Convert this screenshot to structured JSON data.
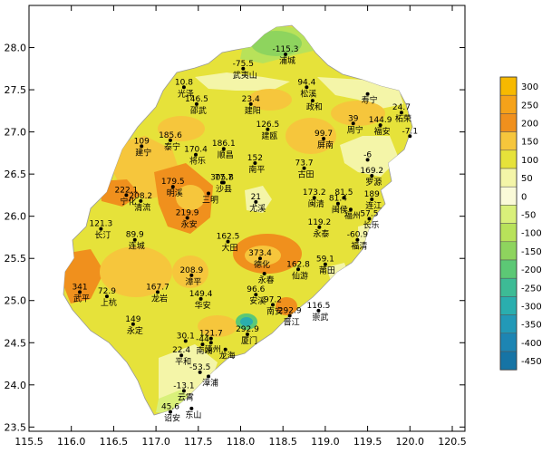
{
  "map": {
    "x_ticks": [
      "115.5",
      "116.0",
      "116.5",
      "117.0",
      "117.5",
      "118.0",
      "118.5",
      "119.0",
      "119.5",
      "120.0",
      "120.5"
    ],
    "y_ticks": [
      "28.0",
      "27.5",
      "27.0",
      "26.5",
      "26.0",
      "25.5",
      "25.0",
      "24.5",
      "24.0",
      "23.5"
    ],
    "legend": {
      "labels": [
        "300",
        "250",
        "200",
        "150",
        "100",
        "50",
        "0",
        "-50",
        "-100",
        "-150",
        "-200",
        "-250",
        "-300",
        "-350",
        "-400",
        "-450"
      ],
      "colors": [
        "#f7b900",
        "#f5a21a",
        "#f0901d",
        "#f6c63c",
        "#e6e23a",
        "#f4f5a8",
        "#fafad8",
        "#d9f07a",
        "#b8e25a",
        "#8ed45e",
        "#5cc875",
        "#3dbb95",
        "#2aaeae",
        "#2299b7",
        "#1d85b3",
        "#1674a5"
      ]
    },
    "stations": [
      {
        "value": "-115.3",
        "name": "浦城",
        "lon": 118.53,
        "lat": 27.92
      },
      {
        "value": "-75.5",
        "name": "武夷山",
        "lon": 118.03,
        "lat": 27.75
      },
      {
        "value": "10.8",
        "name": "光泽",
        "lon": 117.33,
        "lat": 27.53
      },
      {
        "value": "146.5",
        "name": "邵武",
        "lon": 117.48,
        "lat": 27.33
      },
      {
        "value": "23.4",
        "name": "建阳",
        "lon": 118.12,
        "lat": 27.33
      },
      {
        "value": "94.4",
        "name": "松溪",
        "lon": 118.78,
        "lat": 27.53
      },
      {
        "value": "",
        "name": "政和",
        "lon": 118.85,
        "lat": 27.37
      },
      {
        "value": "",
        "name": "寿宁",
        "lon": 119.5,
        "lat": 27.45
      },
      {
        "value": "24.7",
        "name": "柘荣",
        "lon": 119.9,
        "lat": 27.23
      },
      {
        "value": "39",
        "name": "周宁",
        "lon": 119.33,
        "lat": 27.1
      },
      {
        "value": "144.9",
        "name": "福安",
        "lon": 119.65,
        "lat": 27.08
      },
      {
        "value": "-7.1",
        "name": "",
        "lon": 120.0,
        "lat": 26.95
      },
      {
        "value": "126.5",
        "name": "建瓯",
        "lon": 118.32,
        "lat": 27.03
      },
      {
        "value": "185.6",
        "name": "泰宁",
        "lon": 117.17,
        "lat": 26.9
      },
      {
        "value": "109",
        "name": "建宁",
        "lon": 116.83,
        "lat": 26.83
      },
      {
        "value": "170.4",
        "name": "将乐",
        "lon": 117.47,
        "lat": 26.73
      },
      {
        "value": "186.1",
        "name": "顺昌",
        "lon": 117.8,
        "lat": 26.8
      },
      {
        "value": "99.7",
        "name": "屏南",
        "lon": 118.98,
        "lat": 26.92
      },
      {
        "value": "152",
        "name": "南平",
        "lon": 118.17,
        "lat": 26.63
      },
      {
        "value": "73.7",
        "name": "古田",
        "lon": 118.75,
        "lat": 26.57
      },
      {
        "value": "-6",
        "name": "",
        "lon": 119.5,
        "lat": 26.67
      },
      {
        "value": "169.2",
        "name": "罗源",
        "lon": 119.55,
        "lat": 26.48
      },
      {
        "value": "179.5",
        "name": "明溪",
        "lon": 117.2,
        "lat": 26.35
      },
      {
        "value": "77.7",
        "name": "",
        "lon": 117.8,
        "lat": 26.4
      },
      {
        "value": "305.8",
        "name": "沙县",
        "lon": 117.78,
        "lat": 26.4
      },
      {
        "value": "",
        "name": "三明",
        "lon": 117.62,
        "lat": 26.27
      },
      {
        "value": "21",
        "name": "尤溪",
        "lon": 118.18,
        "lat": 26.17
      },
      {
        "value": "173.2",
        "name": "闽清",
        "lon": 118.87,
        "lat": 26.22
      },
      {
        "value": "81.5",
        "name": "",
        "lon": 119.22,
        "lat": 26.22
      },
      {
        "value": "81.4",
        "name": "闽侯",
        "lon": 119.15,
        "lat": 26.15
      },
      {
        "value": "",
        "name": "福州",
        "lon": 119.3,
        "lat": 26.08
      },
      {
        "value": "57.5",
        "name": "长乐",
        "lon": 119.52,
        "lat": 25.97
      },
      {
        "value": "189",
        "name": "连江",
        "lon": 119.55,
        "lat": 26.2
      },
      {
        "value": "222.1",
        "name": "宁化",
        "lon": 116.65,
        "lat": 26.25
      },
      {
        "value": "208.2",
        "name": "清流",
        "lon": 116.82,
        "lat": 26.18
      },
      {
        "value": "219.9",
        "name": "永安",
        "lon": 117.37,
        "lat": 25.98
      },
      {
        "value": "121.3",
        "name": "长汀",
        "lon": 116.35,
        "lat": 25.85
      },
      {
        "value": "89.9",
        "name": "连城",
        "lon": 116.75,
        "lat": 25.72
      },
      {
        "value": "162.5",
        "name": "大田",
        "lon": 117.85,
        "lat": 25.7
      },
      {
        "value": "119.2",
        "name": "永泰",
        "lon": 118.93,
        "lat": 25.87
      },
      {
        "value": "-60.9",
        "name": "福清",
        "lon": 119.38,
        "lat": 25.72
      },
      {
        "value": "373.4",
        "name": "德化",
        "lon": 118.23,
        "lat": 25.5
      },
      {
        "value": "",
        "name": "永春",
        "lon": 118.28,
        "lat": 25.32
      },
      {
        "value": "162.8",
        "name": "仙游",
        "lon": 118.68,
        "lat": 25.37
      },
      {
        "value": "59.1",
        "name": "莆田",
        "lon": 119.0,
        "lat": 25.43
      },
      {
        "value": "208.9",
        "name": "漳平",
        "lon": 117.42,
        "lat": 25.3
      },
      {
        "value": "341",
        "name": "武平",
        "lon": 116.1,
        "lat": 25.1
      },
      {
        "value": "72.9",
        "name": "上杭",
        "lon": 116.42,
        "lat": 25.05
      },
      {
        "value": "167.7",
        "name": "龙岩",
        "lon": 117.02,
        "lat": 25.1
      },
      {
        "value": "149.4",
        "name": "华安",
        "lon": 117.53,
        "lat": 25.02
      },
      {
        "value": "96.6",
        "name": "安溪",
        "lon": 118.18,
        "lat": 25.07
      },
      {
        "value": "97.2",
        "name": "南安",
        "lon": 118.38,
        "lat": 24.95
      },
      {
        "value": "116.5",
        "name": "崇武",
        "lon": 118.92,
        "lat": 24.88
      },
      {
        "value": "292.9",
        "name": "晋江",
        "lon": 118.58,
        "lat": 24.82
      },
      {
        "value": "149",
        "name": "永定",
        "lon": 116.73,
        "lat": 24.72
      },
      {
        "value": "292.9",
        "name": "厦门",
        "lon": 118.08,
        "lat": 24.6
      },
      {
        "value": "121.7",
        "name": "",
        "lon": 117.65,
        "lat": 24.55
      },
      {
        "value": "30.1",
        "name": "",
        "lon": 117.35,
        "lat": 24.52
      },
      {
        "value": "-44",
        "name": "南靖",
        "lon": 117.55,
        "lat": 24.48
      },
      {
        "value": "",
        "name": "漳州",
        "lon": 117.65,
        "lat": 24.5
      },
      {
        "value": "",
        "name": "龙海",
        "lon": 117.82,
        "lat": 24.42
      },
      {
        "value": "22.4",
        "name": "平和",
        "lon": 117.3,
        "lat": 24.35
      },
      {
        "value": "-53.5",
        "name": "",
        "lon": 117.52,
        "lat": 24.15
      },
      {
        "value": "",
        "name": "漳浦",
        "lon": 117.62,
        "lat": 24.1
      },
      {
        "value": "-13.1",
        "name": "云霄",
        "lon": 117.33,
        "lat": 23.93
      },
      {
        "value": "",
        "name": "东山",
        "lon": 117.42,
        "lat": 23.72
      },
      {
        "value": "45.6",
        "name": "诏安",
        "lon": 117.17,
        "lat": 23.68
      }
    ]
  }
}
